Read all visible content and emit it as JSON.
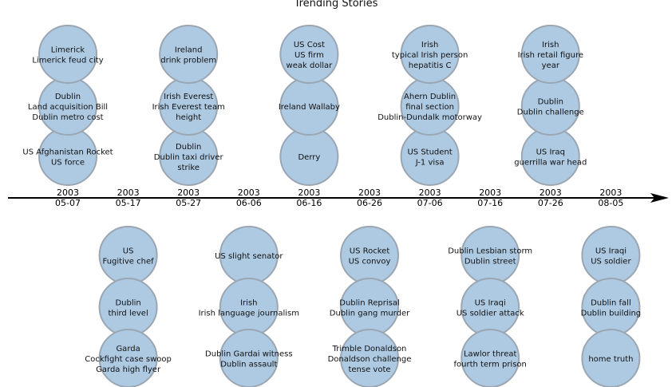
{
  "title": "Trending Stories",
  "colors": {
    "bubble_fill": "#aecae3",
    "bubble_stroke": "#9aa6b2",
    "axis": "#000000",
    "text": "#111111"
  },
  "dates": [
    {
      "year": "2003",
      "day": "05-07"
    },
    {
      "year": "2003",
      "day": "05-17"
    },
    {
      "year": "2003",
      "day": "05-27"
    },
    {
      "year": "2003",
      "day": "06-06"
    },
    {
      "year": "2003",
      "day": "06-16"
    },
    {
      "year": "2003",
      "day": "06-26"
    },
    {
      "year": "2003",
      "day": "07-06"
    },
    {
      "year": "2003",
      "day": "07-16"
    },
    {
      "year": "2003",
      "day": "07-26"
    },
    {
      "year": "2003",
      "day": "08-05"
    }
  ],
  "stories": [
    {
      "date": "05-07",
      "side": "above",
      "rank": 0,
      "lines": [
        "US Afghanistan Rocket",
        "US force"
      ]
    },
    {
      "date": "05-07",
      "side": "above",
      "rank": 1,
      "lines": [
        "Dublin",
        "Land acquisition Bill",
        "Dublin metro cost"
      ]
    },
    {
      "date": "05-07",
      "side": "above",
      "rank": 2,
      "lines": [
        "Limerick",
        "Limerick feud city"
      ]
    },
    {
      "date": "05-17",
      "side": "below",
      "rank": 0,
      "lines": [
        "US",
        "Fugitive chef"
      ]
    },
    {
      "date": "05-17",
      "side": "below",
      "rank": 1,
      "lines": [
        "Dublin",
        "third level"
      ]
    },
    {
      "date": "05-17",
      "side": "below",
      "rank": 2,
      "lines": [
        "Garda",
        "Cockfight case swoop",
        "Garda high flyer"
      ]
    },
    {
      "date": "05-27",
      "side": "above",
      "rank": 0,
      "lines": [
        "Dublin",
        "Dublin taxi driver",
        "strike"
      ]
    },
    {
      "date": "05-27",
      "side": "above",
      "rank": 1,
      "lines": [
        "Irish Everest",
        "Irish Everest team",
        "height"
      ]
    },
    {
      "date": "05-27",
      "side": "above",
      "rank": 2,
      "lines": [
        "Ireland",
        "drink problem"
      ]
    },
    {
      "date": "06-06",
      "side": "below",
      "rank": 0,
      "lines": [
        "US slight senator"
      ]
    },
    {
      "date": "06-06",
      "side": "below",
      "rank": 1,
      "lines": [
        "Irish",
        "Irish language journalism"
      ]
    },
    {
      "date": "06-06",
      "side": "below",
      "rank": 2,
      "lines": [
        "Dublin Gardai witness",
        "Dublin assault"
      ]
    },
    {
      "date": "06-16",
      "side": "above",
      "rank": 0,
      "lines": [
        "Derry"
      ]
    },
    {
      "date": "06-16",
      "side": "above",
      "rank": 1,
      "lines": [
        "Ireland Wallaby"
      ]
    },
    {
      "date": "06-16",
      "side": "above",
      "rank": 2,
      "lines": [
        "US Cost",
        "US firm",
        "weak dollar"
      ]
    },
    {
      "date": "06-26",
      "side": "below",
      "rank": 0,
      "lines": [
        "US Rocket",
        "US convoy"
      ]
    },
    {
      "date": "06-26",
      "side": "below",
      "rank": 1,
      "lines": [
        "Dublin Reprisal",
        "Dublin gang murder"
      ]
    },
    {
      "date": "06-26",
      "side": "below",
      "rank": 2,
      "lines": [
        "Trimble Donaldson",
        "Donaldson challenge",
        "tense vote"
      ]
    },
    {
      "date": "07-06",
      "side": "above",
      "rank": 0,
      "lines": [
        "US Student",
        "J-1 visa"
      ]
    },
    {
      "date": "07-06",
      "side": "above",
      "rank": 1,
      "lines": [
        "Ahern Dublin",
        "final section",
        "Dublin-Dundalk motorway"
      ]
    },
    {
      "date": "07-06",
      "side": "above",
      "rank": 2,
      "lines": [
        "Irish",
        "typical Irish person",
        "hepatitis C"
      ]
    },
    {
      "date": "07-16",
      "side": "below",
      "rank": 0,
      "lines": [
        "Dublin Lesbian storm",
        "Dublin street"
      ]
    },
    {
      "date": "07-16",
      "side": "below",
      "rank": 1,
      "lines": [
        "US Iraqi",
        "US soldier attack"
      ]
    },
    {
      "date": "07-16",
      "side": "below",
      "rank": 2,
      "lines": [
        "Lawlor threat",
        "fourth term prison"
      ]
    },
    {
      "date": "07-26",
      "side": "above",
      "rank": 0,
      "lines": [
        "US Iraq",
        "guerrilla war head"
      ]
    },
    {
      "date": "07-26",
      "side": "above",
      "rank": 1,
      "lines": [
        "Dublin",
        "Dublin challenge"
      ]
    },
    {
      "date": "07-26",
      "side": "above",
      "rank": 2,
      "lines": [
        "Irish",
        "Irish retail figure",
        "year"
      ]
    },
    {
      "date": "08-05",
      "side": "below",
      "rank": 0,
      "lines": [
        "US Iraqi",
        "US soldier"
      ]
    },
    {
      "date": "08-05",
      "side": "below",
      "rank": 1,
      "lines": [
        "Dublin fall",
        "Dublin building"
      ]
    },
    {
      "date": "08-05",
      "side": "below",
      "rank": 2,
      "lines": [
        "home truth"
      ]
    }
  ]
}
